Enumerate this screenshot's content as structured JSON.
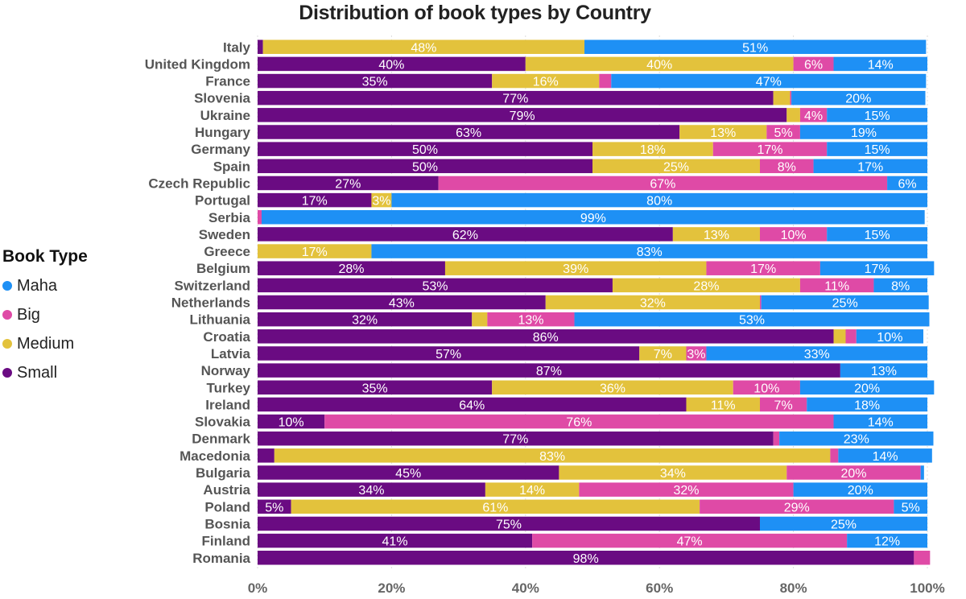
{
  "chart_data": {
    "type": "bar",
    "orientation": "horizontal",
    "stacking": "100%",
    "title": "Distribution of book types by Country",
    "legend_title": "Book Type",
    "legend_position": "left",
    "legend_order": [
      "Maha",
      "Big",
      "Medium",
      "Small"
    ],
    "xlim": [
      0,
      100
    ],
    "x_ticks": [
      "0%",
      "20%",
      "40%",
      "60%",
      "80%",
      "100%"
    ],
    "categories": [
      "Italy",
      "United Kingdom",
      "France",
      "Slovenia",
      "Ukraine",
      "Hungary",
      "Germany",
      "Spain",
      "Czech Republic",
      "Portugal",
      "Serbia",
      "Sweden",
      "Greece",
      "Belgium",
      "Switzerland",
      "Netherlands",
      "Lithuania",
      "Croatia",
      "Latvia",
      "Norway",
      "Turkey",
      "Ireland",
      "Slovakia",
      "Denmark",
      "Macedonia",
      "Bulgaria",
      "Austria",
      "Poland",
      "Bosnia",
      "Finland",
      "Romania"
    ],
    "series": [
      {
        "name": "Small",
        "color": "#6a0b82",
        "values": [
          0.8,
          40,
          35,
          77,
          79,
          63,
          50,
          50,
          27,
          17,
          0,
          62,
          0,
          28,
          53,
          43,
          32,
          86,
          57,
          87,
          35,
          64,
          10,
          77,
          2.5,
          45,
          34,
          5,
          75,
          41,
          98
        ],
        "labels": [
          "",
          "40%",
          "35%",
          "77%",
          "79%",
          "63%",
          "50%",
          "50%",
          "27%",
          "17%",
          "",
          "62%",
          "",
          "28%",
          "53%",
          "43%",
          "32%",
          "86%",
          "57%",
          "87%",
          "35%",
          "64%",
          "10%",
          "77%",
          "",
          "45%",
          "34%",
          "5%",
          "75%",
          "41%",
          "98%"
        ]
      },
      {
        "name": "Medium",
        "color": "#e3c23c",
        "values": [
          48,
          40,
          16,
          2.5,
          2,
          13,
          18,
          25,
          0,
          3,
          0,
          13,
          17,
          39,
          28,
          32,
          2.3,
          1.8,
          7,
          0,
          36,
          11,
          0,
          0,
          83,
          34,
          14,
          61,
          0,
          0,
          0
        ],
        "labels": [
          "48%",
          "40%",
          "16%",
          "",
          "",
          "13%",
          "18%",
          "25%",
          "",
          "3%",
          "",
          "13%",
          "17%",
          "39%",
          "28%",
          "32%",
          "",
          "",
          "7%",
          "",
          "36%",
          "11%",
          "",
          "",
          "83%",
          "34%",
          "14%",
          "61%",
          "",
          "",
          ""
        ]
      },
      {
        "name": "Big",
        "color": "#df4aa6",
        "values": [
          0,
          6,
          1.8,
          0.2,
          4,
          5,
          17,
          8,
          67,
          0,
          0.6,
          10,
          0,
          17,
          11,
          0.2,
          13,
          1.6,
          3,
          0,
          10,
          7,
          76,
          0.9,
          1.2,
          20,
          32,
          29,
          0,
          47,
          2.4
        ],
        "labels": [
          "",
          "6%",
          "",
          "",
          "4%",
          "5%",
          "17%",
          "8%",
          "67%",
          "",
          "",
          "10%",
          "",
          "17%",
          "11%",
          "",
          "13%",
          "",
          "3%",
          "",
          "10%",
          "7%",
          "76%",
          "",
          "",
          "20%",
          "32%",
          "29%",
          "",
          "47%",
          ""
        ]
      },
      {
        "name": "Maha",
        "color": "#1e90f5",
        "values": [
          51,
          14,
          47,
          20,
          15,
          19,
          15,
          17,
          6,
          80,
          99,
          15,
          83,
          17,
          8,
          25,
          53,
          10,
          33,
          13,
          20,
          18,
          14,
          23,
          14,
          0.5,
          20,
          5,
          25,
          12,
          0
        ],
        "labels": [
          "51%",
          "14%",
          "47%",
          "20%",
          "15%",
          "19%",
          "15%",
          "17%",
          "6%",
          "80%",
          "99%",
          "15%",
          "83%",
          "17%",
          "8%",
          "25%",
          "53%",
          "10%",
          "33%",
          "13%",
          "20%",
          "18%",
          "14%",
          "23%",
          "14%",
          "",
          "20%",
          "5%",
          "25%",
          "12%",
          ""
        ]
      }
    ]
  }
}
